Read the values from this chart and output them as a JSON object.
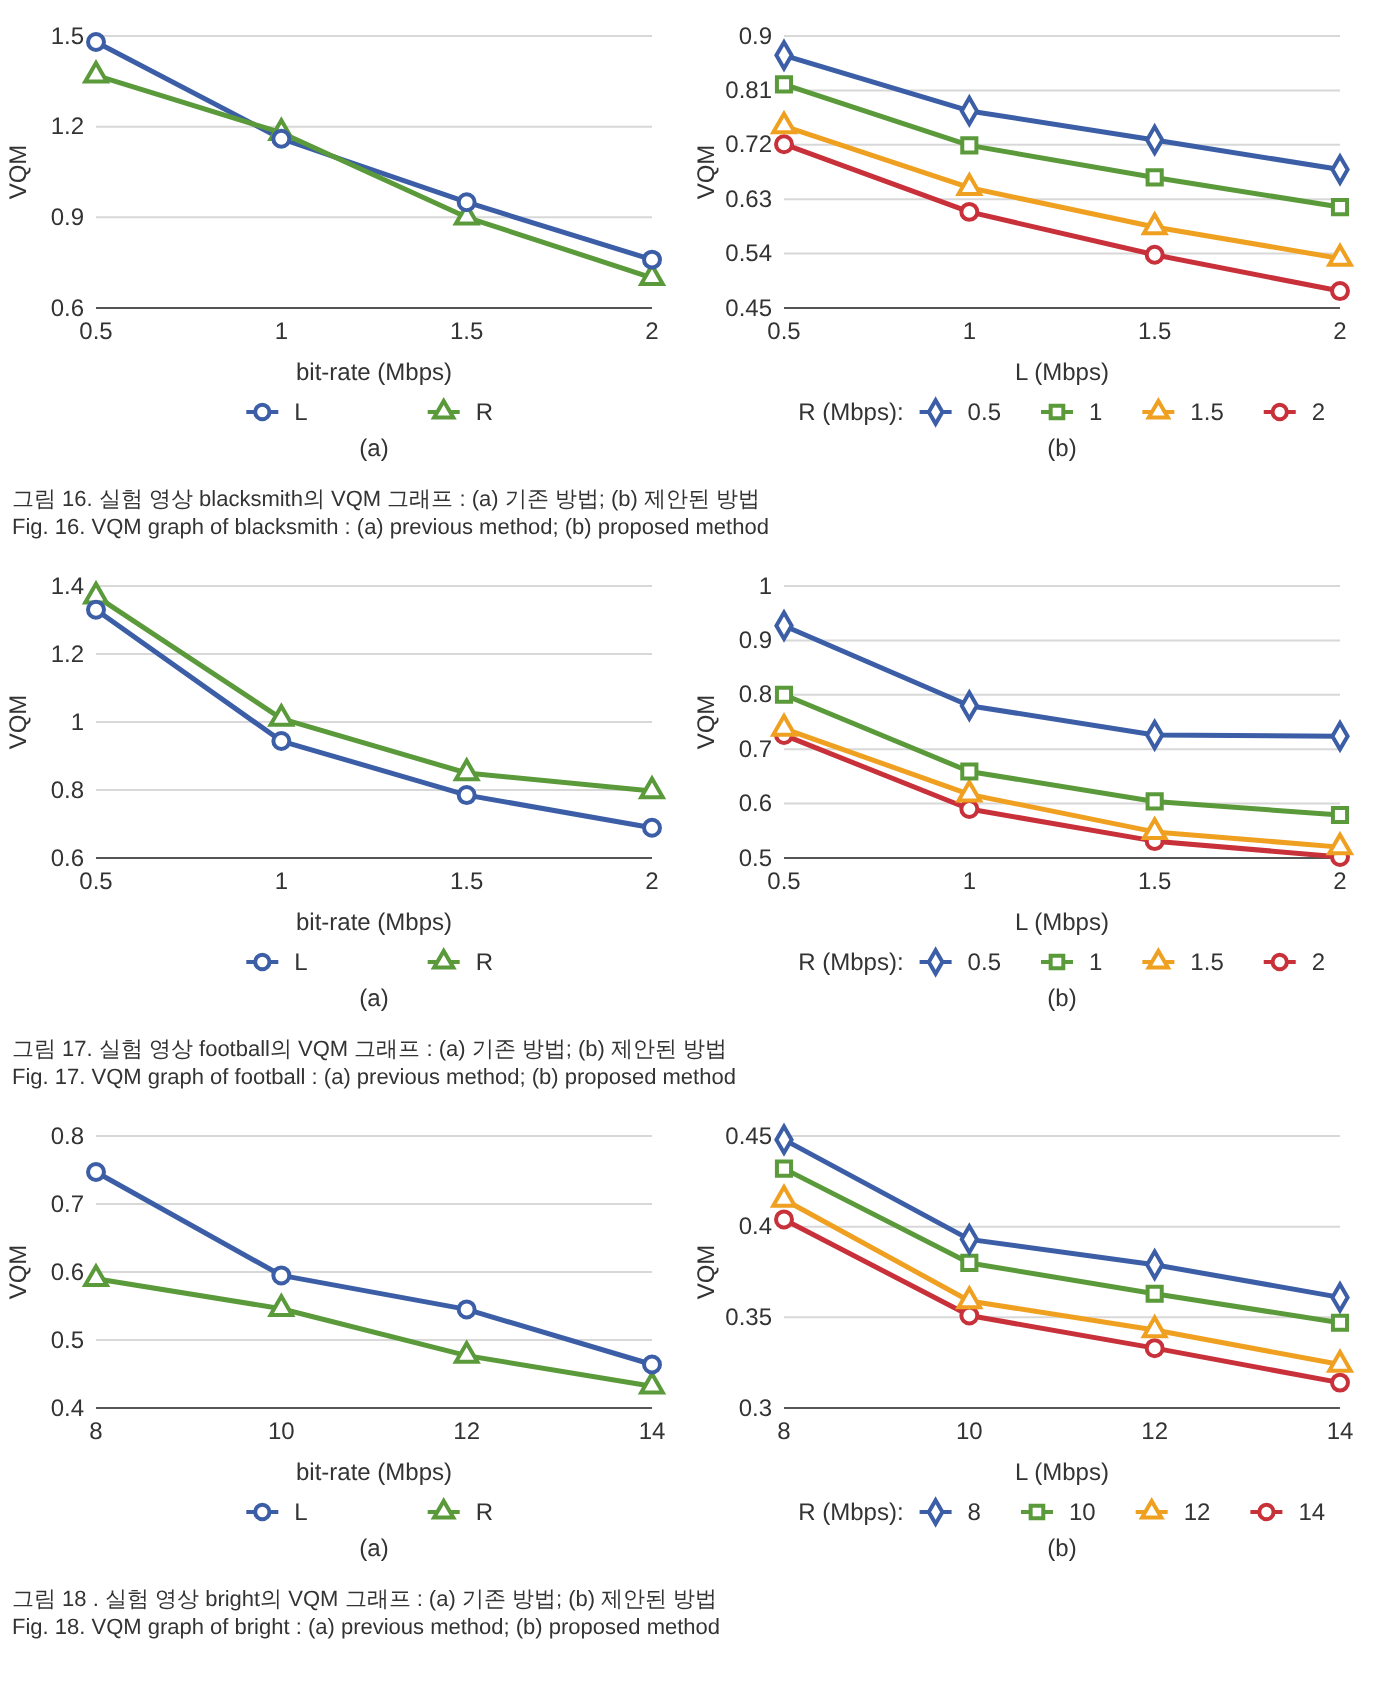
{
  "chart_data": [
    {
      "type": "line",
      "xlabel": "bit-rate (Mbps)",
      "ylabel": "VQM",
      "x": [
        0.5,
        1,
        1.5,
        2
      ],
      "xlim": [
        0.5,
        2
      ],
      "xticks": [
        0.5,
        1,
        1.5,
        2
      ],
      "ylim": [
        0.6,
        1.5
      ],
      "yticks": [
        0.6,
        0.9,
        1.2,
        1.5
      ],
      "grid": "y",
      "legend": "bottom",
      "series": [
        {
          "name": "L",
          "color": "#3b5ea6",
          "marker": "circle",
          "values": [
            1.48,
            1.16,
            0.95,
            0.76
          ]
        },
        {
          "name": "R",
          "color": "#5a9a3a",
          "marker": "triangle",
          "values": [
            1.37,
            1.18,
            0.9,
            0.7
          ]
        }
      ],
      "annotations": [
        "(a)",
        "그림 16. 실험 영상 blacksmith의 VQM 그래프 : (a) 기존 방법; (b) 제안된 방법",
        "Fig. 16. VQM graph of blacksmith : (a) previous method; (b) proposed method"
      ]
    },
    {
      "type": "line",
      "xlabel": "L (Mbps)",
      "ylabel": "VQM",
      "legend_title": "R (Mbps):",
      "x": [
        0.5,
        1,
        1.5,
        2
      ],
      "xlim": [
        0.5,
        2
      ],
      "xticks": [
        0.5,
        1,
        1.5,
        2
      ],
      "ylim": [
        0.45,
        0.9
      ],
      "yticks": [
        0.45,
        0.54,
        0.63,
        0.72,
        0.81,
        0.9
      ],
      "grid": "y",
      "legend": "bottom",
      "series": [
        {
          "name": "0.5",
          "color": "#3b5ea6",
          "marker": "diamond",
          "values": [
            0.868,
            0.776,
            0.728,
            0.679
          ]
        },
        {
          "name": "1",
          "color": "#5a9a3a",
          "marker": "square",
          "values": [
            0.82,
            0.719,
            0.666,
            0.617
          ]
        },
        {
          "name": "1.5",
          "color": "#f0a020",
          "marker": "triangle",
          "values": [
            0.751,
            0.649,
            0.584,
            0.532
          ]
        },
        {
          "name": "2",
          "color": "#c8303a",
          "marker": "circle",
          "values": [
            0.721,
            0.609,
            0.538,
            0.478
          ]
        }
      ],
      "annotations": [
        "(b)"
      ]
    },
    {
      "type": "line",
      "xlabel": "bit-rate (Mbps)",
      "ylabel": "VQM",
      "x": [
        0.5,
        1,
        1.5,
        2
      ],
      "xlim": [
        0.5,
        2
      ],
      "xticks": [
        0.5,
        1,
        1.5,
        2
      ],
      "ylim": [
        0.6,
        1.4
      ],
      "yticks": [
        0.6,
        0.8,
        1,
        1.2,
        1.4
      ],
      "grid": "y",
      "legend": "bottom",
      "series": [
        {
          "name": "L",
          "color": "#3b5ea6",
          "marker": "circle",
          "values": [
            1.33,
            0.944,
            0.785,
            0.689
          ]
        },
        {
          "name": "R",
          "color": "#5a9a3a",
          "marker": "triangle",
          "values": [
            1.37,
            1.01,
            0.85,
            0.797
          ]
        }
      ],
      "annotations": [
        "(a)",
        "그림 17. 실험 영상 football의 VQM 그래프 : (a) 기존 방법; (b) 제안된 방법",
        "Fig. 17. VQM graph of football : (a) previous method; (b) proposed method"
      ]
    },
    {
      "type": "line",
      "xlabel": "L (Mbps)",
      "ylabel": "VQM",
      "legend_title": "R (Mbps):",
      "x": [
        0.5,
        1,
        1.5,
        2
      ],
      "xlim": [
        0.5,
        2
      ],
      "xticks": [
        0.5,
        1,
        1.5,
        2
      ],
      "ylim": [
        0.5,
        1
      ],
      "yticks": [
        0.5,
        0.6,
        0.7,
        0.8,
        0.9,
        1
      ],
      "grid": "y",
      "legend": "bottom",
      "series": [
        {
          "name": "0.5",
          "color": "#3b5ea6",
          "marker": "diamond",
          "values": [
            0.927,
            0.78,
            0.726,
            0.724
          ]
        },
        {
          "name": "1",
          "color": "#5a9a3a",
          "marker": "square",
          "values": [
            0.8,
            0.659,
            0.604,
            0.579
          ]
        },
        {
          "name": "1.5",
          "color": "#f0a020",
          "marker": "triangle",
          "values": [
            0.738,
            0.617,
            0.548,
            0.52
          ]
        },
        {
          "name": "2",
          "color": "#c8303a",
          "marker": "circle",
          "values": [
            0.726,
            0.59,
            0.531,
            0.502
          ]
        }
      ],
      "annotations": [
        "(b)"
      ]
    },
    {
      "type": "line",
      "xlabel": "bit-rate (Mbps)",
      "ylabel": "VQM",
      "x": [
        8,
        10,
        12,
        14
      ],
      "xlim": [
        8,
        14
      ],
      "xticks": [
        8,
        10,
        12,
        14
      ],
      "ylim": [
        0.4,
        0.8
      ],
      "yticks": [
        0.4,
        0.5,
        0.6,
        0.7,
        0.8
      ],
      "grid": "y",
      "legend": "bottom",
      "series": [
        {
          "name": "L",
          "color": "#3b5ea6",
          "marker": "circle",
          "values": [
            0.747,
            0.595,
            0.545,
            0.464
          ]
        },
        {
          "name": "R",
          "color": "#5a9a3a",
          "marker": "triangle",
          "values": [
            0.59,
            0.546,
            0.477,
            0.432
          ]
        }
      ],
      "annotations": [
        "(a)",
        "그림 18 . 실험 영상 bright의 VQM 그래프 : (a) 기존 방법; (b) 제안된 방법",
        "Fig. 18. VQM graph of bright : (a) previous method; (b) proposed method"
      ]
    },
    {
      "type": "line",
      "xlabel": "L (Mbps)",
      "ylabel": "VQM",
      "legend_title": "R (Mbps):",
      "x": [
        8,
        10,
        12,
        14
      ],
      "xlim": [
        8,
        14
      ],
      "xticks": [
        8,
        10,
        12,
        14
      ],
      "ylim": [
        0.3,
        0.45
      ],
      "yticks": [
        0.3,
        0.35,
        0.4,
        0.45
      ],
      "grid": "y",
      "legend": "bottom",
      "series": [
        {
          "name": "8",
          "color": "#3b5ea6",
          "marker": "diamond",
          "values": [
            0.448,
            0.393,
            0.379,
            0.361
          ]
        },
        {
          "name": "10",
          "color": "#5a9a3a",
          "marker": "square",
          "values": [
            0.432,
            0.38,
            0.363,
            0.347
          ]
        },
        {
          "name": "12",
          "color": "#f0a020",
          "marker": "triangle",
          "values": [
            0.415,
            0.359,
            0.343,
            0.324
          ]
        },
        {
          "name": "14",
          "color": "#c8303a",
          "marker": "circle",
          "values": [
            0.404,
            0.351,
            0.333,
            0.314
          ]
        }
      ],
      "annotations": [
        "(b)"
      ]
    }
  ]
}
